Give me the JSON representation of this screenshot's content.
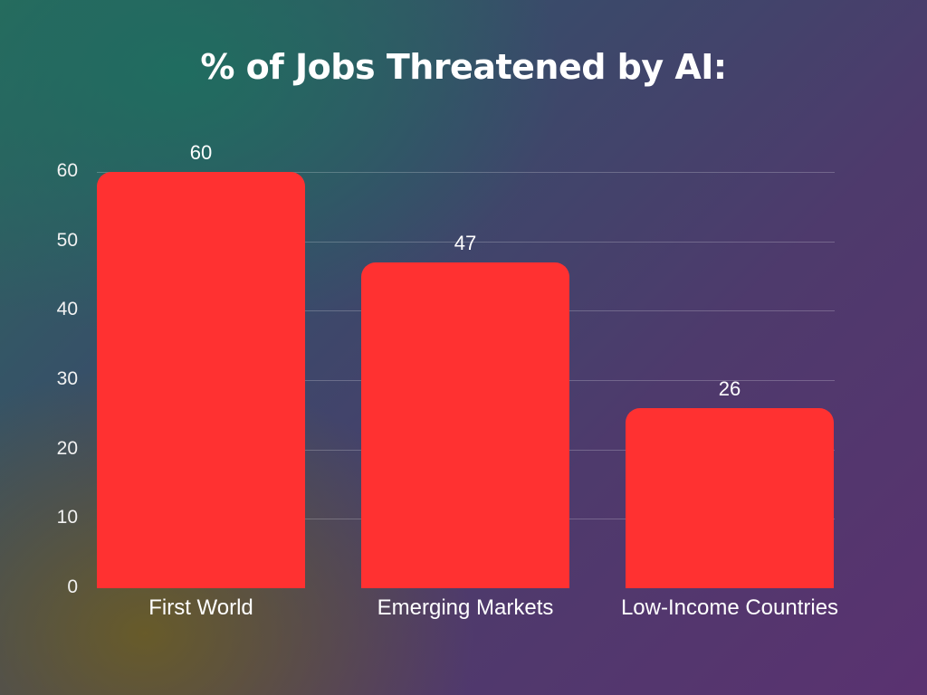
{
  "chart_data": {
    "type": "bar",
    "title": "% of Jobs Threatened by AI:",
    "categories": [
      "First World",
      "Emerging Markets",
      "Low-Income Countries"
    ],
    "values": [
      60,
      47,
      26
    ],
    "data_labels": [
      "60",
      "47",
      "26"
    ],
    "xlabel": "",
    "ylabel": "",
    "ylim": [
      0,
      60
    ],
    "yticks": [
      "0",
      "10",
      "20",
      "30",
      "40",
      "50",
      "60"
    ],
    "grid": true,
    "legend": null,
    "bar_color": "#ff3131"
  }
}
